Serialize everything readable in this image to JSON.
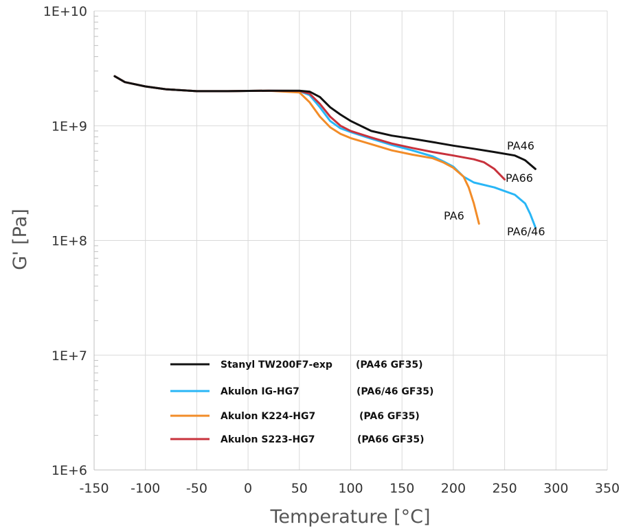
{
  "chart_data": {
    "type": "line",
    "title": "",
    "xlabel": "Temperature [°C]",
    "ylabel": "G' [Pa]",
    "xlim": [
      -150,
      350
    ],
    "ylim": [
      1000000,
      10000000000
    ],
    "yscale": "log",
    "grid": true,
    "legend_position": "bottom-left",
    "x_ticks": [
      "-150",
      "-100",
      "-50",
      "0",
      "50",
      "100",
      "150",
      "200",
      "250",
      "300",
      "350"
    ],
    "y_ticks": [
      "1E+6",
      "1E+7",
      "1E+8",
      "1E+9",
      "1E+10"
    ],
    "series": [
      {
        "name": "Stanyl TW200F7-exp",
        "legend_note": "(PA46 GF35)",
        "label": "PA46",
        "color": "#111111",
        "points": [
          [
            -130,
            2700000000
          ],
          [
            -120,
            2400000000
          ],
          [
            -100,
            2200000000
          ],
          [
            -80,
            2080000000
          ],
          [
            -50,
            2000000000
          ],
          [
            -20,
            2000000000
          ],
          [
            20,
            2020000000
          ],
          [
            50,
            2020000000
          ],
          [
            60,
            1980000000
          ],
          [
            70,
            1780000000
          ],
          [
            80,
            1450000000
          ],
          [
            90,
            1250000000
          ],
          [
            100,
            1100000000
          ],
          [
            120,
            900000000
          ],
          [
            140,
            820000000
          ],
          [
            160,
            770000000
          ],
          [
            180,
            720000000
          ],
          [
            200,
            670000000
          ],
          [
            220,
            630000000
          ],
          [
            240,
            590000000
          ],
          [
            260,
            550000000
          ],
          [
            270,
            500000000
          ],
          [
            280,
            420000000
          ]
        ]
      },
      {
        "name": "Akulon IG-HG7",
        "legend_note": "(PA6/46 GF35)",
        "label": "PA6/46",
        "color": "#29b6f6",
        "points": [
          [
            -130,
            2700000000
          ],
          [
            -120,
            2400000000
          ],
          [
            -100,
            2200000000
          ],
          [
            -80,
            2080000000
          ],
          [
            -50,
            2000000000
          ],
          [
            -20,
            2000000000
          ],
          [
            20,
            2020000000
          ],
          [
            50,
            2000000000
          ],
          [
            60,
            1850000000
          ],
          [
            70,
            1450000000
          ],
          [
            80,
            1100000000
          ],
          [
            90,
            950000000
          ],
          [
            100,
            880000000
          ],
          [
            120,
            770000000
          ],
          [
            140,
            680000000
          ],
          [
            160,
            610000000
          ],
          [
            180,
            540000000
          ],
          [
            190,
            490000000
          ],
          [
            200,
            440000000
          ],
          [
            210,
            360000000
          ],
          [
            220,
            320000000
          ],
          [
            240,
            290000000
          ],
          [
            260,
            250000000
          ],
          [
            270,
            210000000
          ],
          [
            275,
            170000000
          ],
          [
            280,
            130000000
          ]
        ]
      },
      {
        "name": "Akulon K224-HG7",
        "legend_note": "(PA6 GF35)",
        "label": "PA6",
        "color": "#f28c28",
        "points": [
          [
            -130,
            2700000000
          ],
          [
            -120,
            2400000000
          ],
          [
            -100,
            2200000000
          ],
          [
            -80,
            2080000000
          ],
          [
            -50,
            2000000000
          ],
          [
            -20,
            2000000000
          ],
          [
            20,
            2020000000
          ],
          [
            50,
            1950000000
          ],
          [
            60,
            1600000000
          ],
          [
            70,
            1200000000
          ],
          [
            80,
            970000000
          ],
          [
            90,
            850000000
          ],
          [
            100,
            780000000
          ],
          [
            120,
            690000000
          ],
          [
            140,
            610000000
          ],
          [
            160,
            560000000
          ],
          [
            180,
            520000000
          ],
          [
            190,
            480000000
          ],
          [
            200,
            430000000
          ],
          [
            210,
            360000000
          ],
          [
            215,
            290000000
          ],
          [
            220,
            210000000
          ],
          [
            225,
            140000000
          ]
        ]
      },
      {
        "name": "Akulon S223-HG7",
        "legend_note": "(PA66 GF35)",
        "label": "PA66",
        "color": "#c8323c",
        "points": [
          [
            -130,
            2700000000
          ],
          [
            -120,
            2400000000
          ],
          [
            -100,
            2200000000
          ],
          [
            -80,
            2080000000
          ],
          [
            -50,
            2000000000
          ],
          [
            -20,
            2000000000
          ],
          [
            20,
            2020000000
          ],
          [
            50,
            2010000000
          ],
          [
            60,
            1900000000
          ],
          [
            70,
            1550000000
          ],
          [
            80,
            1200000000
          ],
          [
            90,
            1000000000
          ],
          [
            100,
            900000000
          ],
          [
            120,
            790000000
          ],
          [
            140,
            700000000
          ],
          [
            160,
            640000000
          ],
          [
            180,
            590000000
          ],
          [
            200,
            550000000
          ],
          [
            220,
            510000000
          ],
          [
            230,
            480000000
          ],
          [
            240,
            420000000
          ],
          [
            250,
            340000000
          ]
        ]
      }
    ]
  }
}
